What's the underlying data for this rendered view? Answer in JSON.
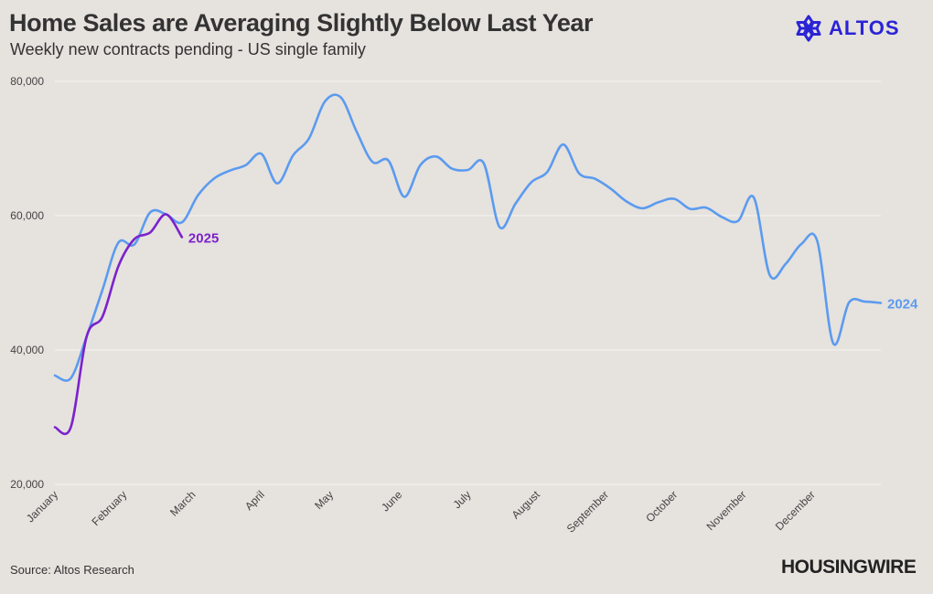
{
  "header": {
    "title": "Home Sales are Averaging Slightly Below Last Year",
    "subtitle": "Weekly new contracts pending - US single family"
  },
  "brand": {
    "name": "ALTOS",
    "icon": "altos-snowflake-logo-icon",
    "color": "#2b24d6"
  },
  "footer": {
    "source": "Source: Altos Research",
    "publisher": "HOUSINGWIRE"
  },
  "chart_data": {
    "type": "line",
    "title": "Home Sales are Averaging Slightly Below Last Year",
    "subtitle": "Weekly new contracts pending - US single family",
    "xlabel": "",
    "ylabel": "",
    "x_ticks": [
      "January",
      "February",
      "March",
      "April",
      "May",
      "June",
      "July",
      "August",
      "September",
      "October",
      "November",
      "December"
    ],
    "y_ticks": [
      "20,000",
      "40,000",
      "60,000",
      "80,000"
    ],
    "y_tick_values": [
      20000,
      40000,
      60000,
      80000
    ],
    "ylim": [
      20000,
      80000
    ],
    "xlim": [
      0,
      52
    ],
    "grid": "horizontal",
    "legend": "inline labels at line ends",
    "series": [
      {
        "name": "2024",
        "color": "#5b9bef",
        "x": [
          0,
          1,
          2,
          3,
          4,
          5,
          6,
          7,
          8,
          9,
          10,
          11,
          12,
          13,
          14,
          15,
          16,
          17,
          18,
          19,
          20,
          21,
          22,
          23,
          24,
          25,
          26,
          27,
          28,
          29,
          30,
          31,
          32,
          33,
          34,
          35,
          36,
          37,
          38,
          39,
          40,
          41,
          42,
          43,
          44,
          45,
          46,
          47,
          48,
          49,
          50,
          51,
          52
        ],
        "values": [
          36200,
          35800,
          42000,
          49000,
          56000,
          55700,
          60500,
          60200,
          59000,
          63000,
          65500,
          66700,
          67500,
          69200,
          64800,
          69000,
          71500,
          77000,
          77600,
          72500,
          68000,
          68200,
          62800,
          67500,
          68800,
          67000,
          66800,
          67800,
          58300,
          61800,
          65000,
          66500,
          70600,
          66300,
          65500,
          64000,
          62100,
          61100,
          62000,
          62500,
          61000,
          61200,
          59800,
          59200,
          62700,
          51200,
          52800,
          55800,
          56200,
          41000,
          47100,
          47200,
          47000
        ]
      },
      {
        "name": "2025",
        "color": "#7b22cc",
        "x": [
          0,
          1,
          2,
          3,
          4,
          5,
          6,
          7,
          8
        ],
        "values": [
          28500,
          28500,
          42000,
          45000,
          52500,
          56500,
          57500,
          60200,
          56800
        ]
      }
    ]
  }
}
